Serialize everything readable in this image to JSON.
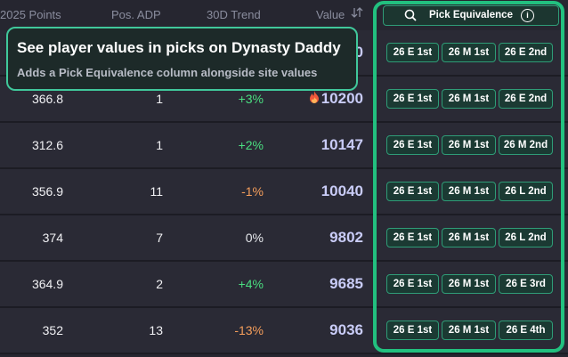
{
  "header": {
    "columns": [
      "2025 Points",
      "Pos. ADP",
      "30D Trend",
      "Value"
    ],
    "pick_button": "Pick Equivalence",
    "info_icon": "i"
  },
  "tooltip": {
    "title": "See player values in picks on Dynasty Daddy",
    "text": "Adds a Pick Equivalence column alongside site values"
  },
  "rows": [
    {
      "value": "0",
      "picks": [
        "26 E 1st",
        "26 M 1st",
        "26 E 2nd"
      ]
    },
    {
      "points": "366.8",
      "adp": "1",
      "trend": "+3%",
      "trend_color": "#4ade80",
      "value": "10200",
      "hot": true,
      "picks": [
        "26 E 1st",
        "26 M 1st",
        "26 E 2nd"
      ]
    },
    {
      "points": "312.6",
      "adp": "1",
      "trend": "+2%",
      "trend_color": "#4ade80",
      "value": "10147",
      "picks": [
        "26 E 1st",
        "26 M 1st",
        "26 M 2nd"
      ]
    },
    {
      "points": "356.9",
      "adp": "11",
      "trend": "-1%",
      "trend_color": "#f59e5b",
      "value": "10040",
      "picks": [
        "26 E 1st",
        "26 M 1st",
        "26 L 2nd"
      ]
    },
    {
      "points": "374",
      "adp": "7",
      "trend": "0%",
      "trend_color": "#e5e7eb",
      "value": "9802",
      "picks": [
        "26 E 1st",
        "26 M 1st",
        "26 L 2nd"
      ]
    },
    {
      "points": "364.9",
      "adp": "2",
      "trend": "+4%",
      "trend_color": "#4ade80",
      "value": "9685",
      "picks": [
        "26 E 1st",
        "26 M 1st",
        "26 E 3rd"
      ]
    },
    {
      "points": "352",
      "adp": "13",
      "trend": "-13%",
      "trend_color": "#f59e5b",
      "value": "9036",
      "picks": [
        "26 E 1st",
        "26 M 1st",
        "26 E 4th"
      ]
    }
  ]
}
